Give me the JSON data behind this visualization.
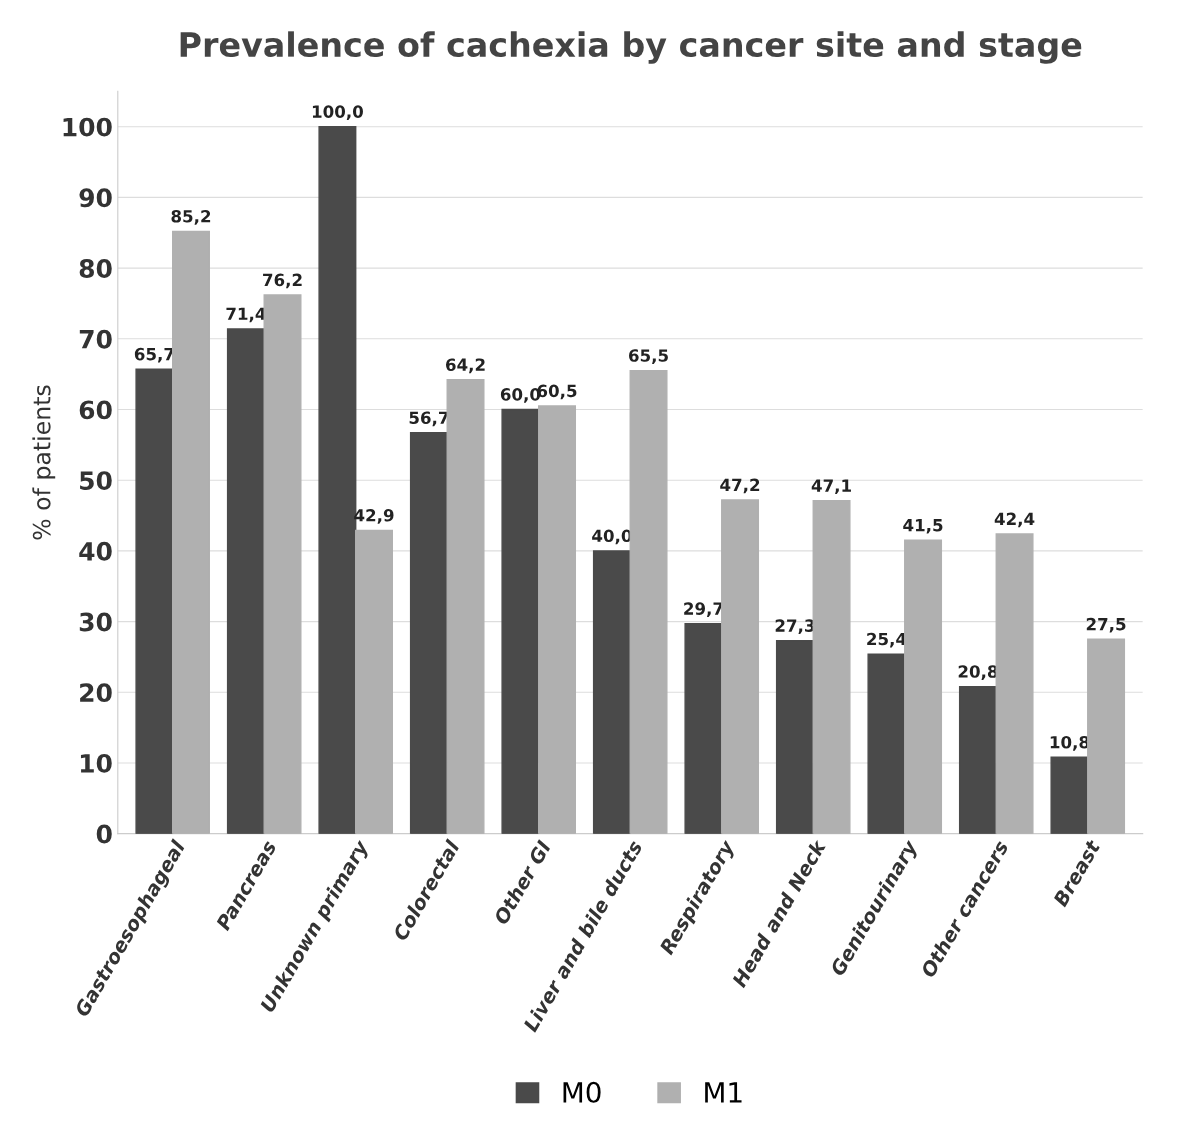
{
  "chart_data": {
    "type": "bar",
    "title": "Prevalence of cachexia by cancer site and stage",
    "ylabel": "% of patients",
    "categories": [
      "Gastroesophageal",
      "Pancreas",
      "Unknown primary",
      "Colorectal",
      "Other GI",
      "Liver and bile ducts",
      "Respiratory",
      "Head and Neck",
      "Genitourinary",
      "Other cancers",
      "Breast"
    ],
    "series": [
      {
        "name": "M0",
        "color": "#4a4a4a",
        "values": [
          65.7,
          71.4,
          100.0,
          56.7,
          60.0,
          40.0,
          29.7,
          27.3,
          25.4,
          20.8,
          10.8
        ],
        "value_labels": [
          "65,7",
          "71,4",
          "100,0",
          "56,7",
          "60,0",
          "40,0",
          "29,7",
          "27,3",
          "25,4",
          "20,8",
          "10,8"
        ]
      },
      {
        "name": "M1",
        "color": "#b0b0b0",
        "values": [
          85.2,
          76.2,
          42.9,
          64.2,
          60.5,
          65.5,
          47.2,
          47.1,
          41.5,
          42.4,
          27.5
        ],
        "value_labels": [
          "85,2",
          "76,2",
          "42,9",
          "64,2",
          "60,5",
          "65,5",
          "47,2",
          "47,1",
          "41,5",
          "42,4",
          "27,5"
        ]
      }
    ],
    "ylim": [
      0,
      105
    ],
    "yticks": [
      0,
      10,
      20,
      30,
      40,
      50,
      60,
      70,
      80,
      90,
      100
    ],
    "grid": "y",
    "legend": "bottom"
  }
}
